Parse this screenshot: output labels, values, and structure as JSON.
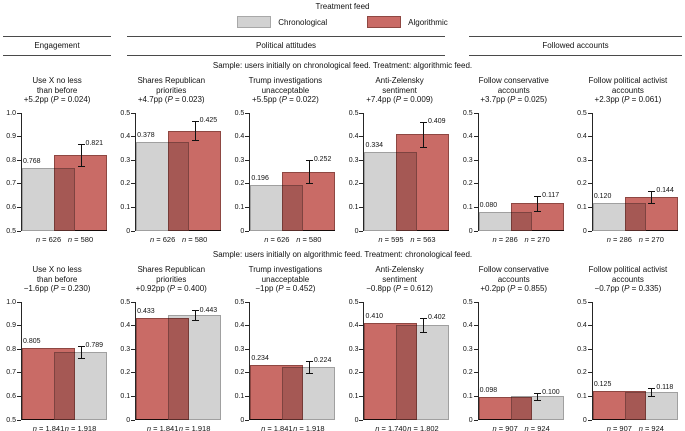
{
  "figure": {
    "legend": {
      "title": "Treatment feed",
      "items": [
        {
          "label": "Chronological",
          "key": "chronological"
        },
        {
          "label": "Algorithmic",
          "key": "algorithmic"
        }
      ]
    },
    "colors": {
      "chronological_fill": "#d2d2d2",
      "chronological_border": "#a0a0a0",
      "algorithmic_fill": "#c96b66",
      "algorithmic_border": "#8e4742",
      "axis": "#262626"
    },
    "section_headers": [
      {
        "label": "Engagement"
      },
      {
        "label": "Political attitudes"
      },
      {
        "label": "Followed accounts"
      }
    ],
    "row_samples": [
      "Sample: users initially on chronological feed. Treatment: algorithmic feed.",
      "Sample: users initially on algorithmic feed. Treatment: chronological feed."
    ]
  },
  "chart_data": [
    {
      "type": "bar",
      "row": 0,
      "title_lines": [
        "Use X no less",
        "than before"
      ],
      "effect_label": "+5.2pp (P = 0.024)",
      "ylim": [
        0.5,
        1.0
      ],
      "ytick_labels": [
        "0.5",
        "0.6",
        "0.7",
        "0.8",
        "0.9",
        "1.0"
      ],
      "bars": [
        {
          "series": "chronological",
          "value": 0.768,
          "label": "0.768",
          "n_label": "n = 626"
        },
        {
          "series": "algorithmic",
          "value": 0.821,
          "label": "0.821",
          "n_label": "n = 580",
          "error": 0.046
        }
      ]
    },
    {
      "type": "bar",
      "row": 0,
      "title_lines": [
        "Shares Republican",
        "priorities"
      ],
      "effect_label": "+4.7pp (P = 0.023)",
      "ylim": [
        0,
        0.5
      ],
      "ytick_labels": [
        "0",
        "0.1",
        "0.2",
        "0.3",
        "0.4",
        "0.5"
      ],
      "bars": [
        {
          "series": "chronological",
          "value": 0.378,
          "label": "0.378",
          "n_label": "n = 626"
        },
        {
          "series": "algorithmic",
          "value": 0.425,
          "label": "0.425",
          "n_label": "n = 580",
          "error": 0.04
        }
      ]
    },
    {
      "type": "bar",
      "row": 0,
      "title_lines": [
        "Trump investigations",
        "unacceptable"
      ],
      "effect_label": "+5.5pp (P = 0.022)",
      "ylim": [
        0,
        0.5
      ],
      "ytick_labels": [
        "0",
        "0.1",
        "0.2",
        "0.3",
        "0.4",
        "0.5"
      ],
      "bars": [
        {
          "series": "chronological",
          "value": 0.196,
          "label": "0.196",
          "n_label": "n = 626"
        },
        {
          "series": "algorithmic",
          "value": 0.252,
          "label": "0.252",
          "n_label": "n = 580",
          "error": 0.047
        }
      ]
    },
    {
      "type": "bar",
      "row": 0,
      "title_lines": [
        "Anti-Zelensky",
        "sentiment"
      ],
      "effect_label": "+7.4pp (P = 0.009)",
      "ylim": [
        0,
        0.5
      ],
      "ytick_labels": [
        "0",
        "0.1",
        "0.2",
        "0.3",
        "0.4",
        "0.5"
      ],
      "bars": [
        {
          "series": "chronological",
          "value": 0.334,
          "label": "0.334",
          "n_label": "n = 595"
        },
        {
          "series": "algorithmic",
          "value": 0.409,
          "label": "0.409",
          "n_label": "n = 563",
          "error": 0.053
        }
      ]
    },
    {
      "type": "bar",
      "row": 0,
      "title_lines": [
        "Follow conservative",
        "accounts"
      ],
      "effect_label": "+3.7pp (P = 0.025)",
      "ylim": [
        0,
        0.5
      ],
      "ytick_labels": [
        "0",
        "0.1",
        "0.2",
        "0.3",
        "0.4",
        "0.5"
      ],
      "bars": [
        {
          "series": "chronological",
          "value": 0.08,
          "label": "0.080",
          "n_label": "n = 286"
        },
        {
          "series": "algorithmic",
          "value": 0.117,
          "label": "0.117",
          "n_label": "n = 270",
          "error": 0.033
        }
      ]
    },
    {
      "type": "bar",
      "row": 0,
      "title_lines": [
        "Follow political activist",
        "accounts"
      ],
      "effect_label": "+2.3pp (P = 0.061)",
      "ylim": [
        0,
        0.5
      ],
      "ytick_labels": [
        "0",
        "0.1",
        "0.2",
        "0.3",
        "0.4",
        "0.5"
      ],
      "bars": [
        {
          "series": "chronological",
          "value": 0.12,
          "label": "0.120",
          "n_label": "n = 286"
        },
        {
          "series": "algorithmic",
          "value": 0.144,
          "label": "0.144",
          "n_label": "n = 270",
          "error": 0.025
        }
      ]
    },
    {
      "type": "bar",
      "row": 1,
      "title_lines": [
        "Use X no less",
        "than before"
      ],
      "effect_label": "−1.6pp (P = 0.230)",
      "ylim": [
        0.5,
        1.0
      ],
      "ytick_labels": [
        "0.5",
        "0.6",
        "0.7",
        "0.8",
        "0.9",
        "1.0"
      ],
      "bars": [
        {
          "series": "algorithmic",
          "value": 0.805,
          "label": "0.805",
          "n_label": "n = 1,841"
        },
        {
          "series": "chronological",
          "value": 0.789,
          "label": "0.789",
          "n_label": "n = 1,918",
          "error": 0.026
        }
      ]
    },
    {
      "type": "bar",
      "row": 1,
      "title_lines": [
        "Shares Republican",
        "priorities"
      ],
      "effect_label": "+0.92pp (P = 0.400)",
      "ylim": [
        0,
        0.5
      ],
      "ytick_labels": [
        "0",
        "0.1",
        "0.2",
        "0.3",
        "0.4",
        "0.5"
      ],
      "bars": [
        {
          "series": "algorithmic",
          "value": 0.433,
          "label": "0.433",
          "n_label": "n = 1,841"
        },
        {
          "series": "chronological",
          "value": 0.443,
          "label": "0.443",
          "n_label": "n = 1,918",
          "error": 0.021
        }
      ]
    },
    {
      "type": "bar",
      "row": 1,
      "title_lines": [
        "Trump investigations",
        "unacceptable"
      ],
      "effect_label": "−1pp (P = 0.452)",
      "ylim": [
        0,
        0.5
      ],
      "ytick_labels": [
        "0",
        "0.1",
        "0.2",
        "0.3",
        "0.4",
        "0.5"
      ],
      "bars": [
        {
          "series": "algorithmic",
          "value": 0.234,
          "label": "0.234",
          "n_label": "n = 1,841"
        },
        {
          "series": "chronological",
          "value": 0.224,
          "label": "0.224",
          "n_label": "n = 1,918",
          "error": 0.026
        }
      ]
    },
    {
      "type": "bar",
      "row": 1,
      "title_lines": [
        "Anti-Zelensky",
        "sentiment"
      ],
      "effect_label": "−0.8pp (P = 0.612)",
      "ylim": [
        0,
        0.5
      ],
      "ytick_labels": [
        "0",
        "0.1",
        "0.2",
        "0.3",
        "0.4",
        "0.5"
      ],
      "bars": [
        {
          "series": "algorithmic",
          "value": 0.41,
          "label": "0.410",
          "n_label": "n = 1,740"
        },
        {
          "series": "chronological",
          "value": 0.402,
          "label": "0.402",
          "n_label": "n = 1,802",
          "error": 0.031
        }
      ]
    },
    {
      "type": "bar",
      "row": 1,
      "title_lines": [
        "Follow conservative",
        "accounts"
      ],
      "effect_label": "+0.2pp (P = 0.855)",
      "ylim": [
        0,
        0.5
      ],
      "ytick_labels": [
        "0",
        "0.1",
        "0.2",
        "0.3",
        "0.4",
        "0.5"
      ],
      "bars": [
        {
          "series": "algorithmic",
          "value": 0.098,
          "label": "0.098",
          "n_label": "n = 907"
        },
        {
          "series": "chronological",
          "value": 0.1,
          "label": "0.100",
          "n_label": "n = 924",
          "error": 0.015
        }
      ]
    },
    {
      "type": "bar",
      "row": 1,
      "title_lines": [
        "Follow political activist",
        "accounts"
      ],
      "effect_label": "−0.7pp (P = 0.335)",
      "ylim": [
        0,
        0.5
      ],
      "ytick_labels": [
        "0",
        "0.1",
        "0.2",
        "0.3",
        "0.4",
        "0.5"
      ],
      "bars": [
        {
          "series": "algorithmic",
          "value": 0.125,
          "label": "0.125",
          "n_label": "n = 907"
        },
        {
          "series": "chronological",
          "value": 0.118,
          "label": "0.118",
          "n_label": "n = 924",
          "error": 0.017
        }
      ]
    }
  ]
}
